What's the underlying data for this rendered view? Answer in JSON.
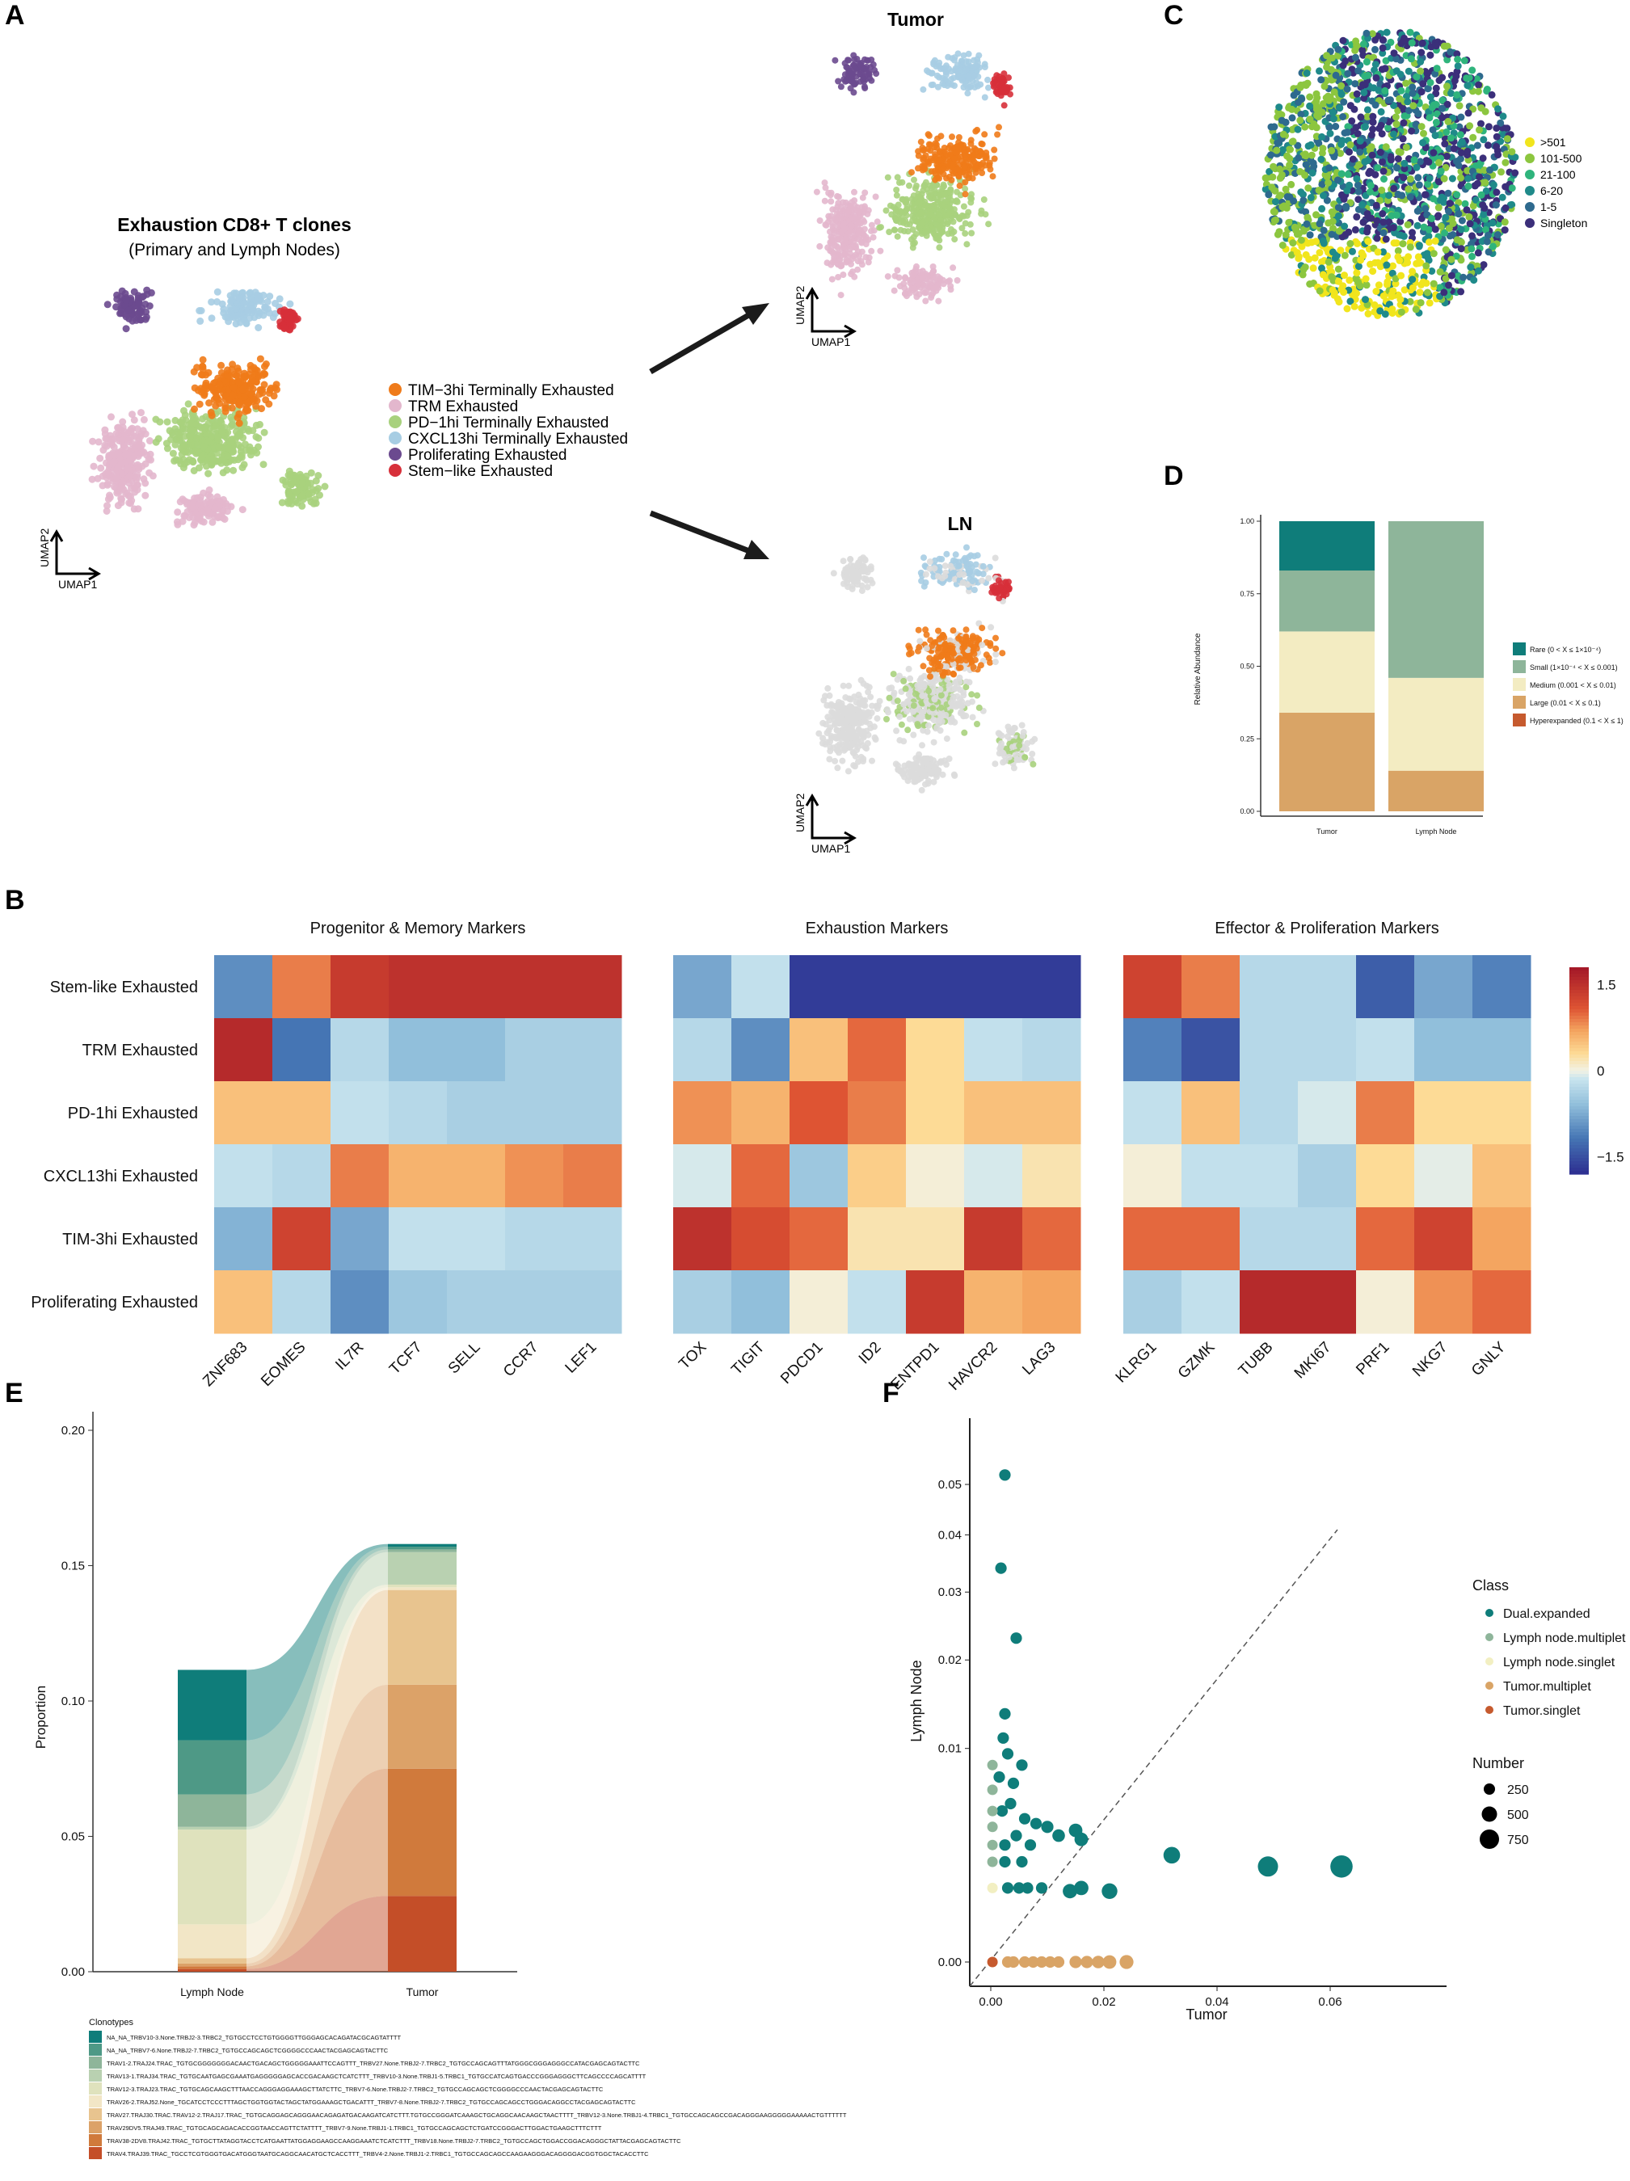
{
  "panel_labels": [
    "A",
    "B",
    "C",
    "D",
    "E",
    "F"
  ],
  "panel_a": {
    "title": "Exhaustion CD8+ T clones",
    "subtitle": "(Primary and Lymph Nodes)",
    "tumor_label": "Tumor",
    "ln_label": "LN",
    "axis_x": "UMAP1",
    "axis_y": "UMAP2",
    "legend": [
      {
        "name": "TIM−3hi Terminally Exhausted",
        "color": "#ef7b1a"
      },
      {
        "name": "TRM Exhausted",
        "color": "#e3b7cd"
      },
      {
        "name": "PD−1hi Terminally Exhausted",
        "color": "#a8d17d"
      },
      {
        "name": "CXCL13hi Terminally Exhausted",
        "color": "#a7cde3"
      },
      {
        "name": "Proliferating Exhausted",
        "color": "#6b4a8f"
      },
      {
        "name": "Stem−like Exhausted",
        "color": "#d7303a"
      }
    ]
  },
  "panel_c": {
    "legend": [
      {
        "name": ">501",
        "color": "#f1e51d"
      },
      {
        "name": "101-500",
        "color": "#8cc63f"
      },
      {
        "name": "21-100",
        "color": "#2fb47c"
      },
      {
        "name": "6-20",
        "color": "#1f8a8a"
      },
      {
        "name": "1-5",
        "color": "#2e6a8e"
      },
      {
        "name": "Singleton",
        "color": "#3b2f7a"
      }
    ]
  },
  "chart_data": [
    {
      "id": "D",
      "type": "bar",
      "stacked": true,
      "categories": [
        "Tumor",
        "Lymph Node"
      ],
      "ylabel": "Relative Abundance",
      "ylim": [
        0,
        1
      ],
      "yticks": [
        "0.00",
        "0.25",
        "0.50",
        "0.75",
        "1.00"
      ],
      "series": [
        {
          "name": "Hyperexpanded (0.1 < X ≤ 1)",
          "color": "#c65a2e",
          "values": [
            0.0,
            0.0
          ]
        },
        {
          "name": "Large (0.01 < X ≤ 0.1)",
          "color": "#d9a466",
          "values": [
            0.34,
            0.14
          ]
        },
        {
          "name": "Medium (0.001 < X ≤ 0.01)",
          "color": "#f3ecc2",
          "values": [
            0.28,
            0.32
          ]
        },
        {
          "name": "Small (1×10⁻⁴ < X ≤ 0.001)",
          "color": "#8eb59a",
          "values": [
            0.21,
            0.54
          ]
        },
        {
          "name": "Rare (0 < X ≤ 1×10⁻⁴)",
          "color": "#0f7d7a",
          "values": [
            0.17,
            0.0
          ]
        }
      ]
    },
    {
      "id": "B",
      "type": "heatmap",
      "rows": [
        "Stem-like Exhausted",
        "TRM Exhausted",
        "PD-1hi Exhausted",
        "CXCL13hi Exhausted",
        "TIM-3hi Exhausted",
        "Proliferating Exhausted"
      ],
      "groups": [
        {
          "title": "Progenitor & Memory Markers",
          "genes": [
            "ZNF683",
            "EOMES",
            "IL7R",
            "TCF7",
            "SELL",
            "CCR7",
            "LEF1"
          ],
          "values": [
            [
              -1.0,
              0.9,
              1.4,
              1.5,
              1.5,
              1.5,
              1.5
            ],
            [
              1.6,
              -1.2,
              -0.3,
              -0.6,
              -0.6,
              -0.4,
              -0.4
            ],
            [
              0.5,
              0.5,
              -0.2,
              -0.3,
              -0.4,
              -0.4,
              -0.4
            ],
            [
              -0.2,
              -0.3,
              0.9,
              0.6,
              0.6,
              0.8,
              0.9
            ],
            [
              -0.7,
              1.3,
              -0.8,
              -0.2,
              -0.2,
              -0.3,
              -0.3
            ],
            [
              0.5,
              -0.3,
              -1.0,
              -0.5,
              -0.4,
              -0.4,
              -0.4
            ]
          ]
        },
        {
          "title": "Exhaustion Markers",
          "genes": [
            "TOX",
            "TIGIT",
            "PDCD1",
            "ID2",
            "ENTPD1",
            "HAVCR2",
            "LAG3"
          ],
          "values": [
            [
              -0.8,
              -0.2,
              -1.7,
              -1.7,
              -1.7,
              -1.7,
              -1.7
            ],
            [
              -0.3,
              -1.0,
              0.5,
              1.0,
              0.3,
              -0.2,
              -0.3
            ],
            [
              0.8,
              0.6,
              1.1,
              0.9,
              0.3,
              0.5,
              0.5
            ],
            [
              -0.1,
              1.0,
              -0.5,
              0.4,
              0.05,
              -0.1,
              0.2
            ],
            [
              1.5,
              1.2,
              1.0,
              0.2,
              0.2,
              1.4,
              1.0
            ],
            [
              -0.4,
              -0.6,
              0.05,
              -0.2,
              1.4,
              0.6,
              0.7
            ]
          ]
        },
        {
          "title": "Effector & Proliferation Markers",
          "genes": [
            "KLRG1",
            "GZMK",
            "TUBB",
            "MKI67",
            "PRF1",
            "NKG7",
            "GNLY"
          ],
          "values": [
            [
              1.3,
              0.9,
              -0.3,
              -0.3,
              -1.4,
              -0.8,
              -1.1
            ],
            [
              -1.1,
              -1.5,
              -0.3,
              -0.3,
              -0.2,
              -0.6,
              -0.6
            ],
            [
              -0.2,
              0.5,
              -0.3,
              -0.1,
              0.9,
              0.3,
              0.3
            ],
            [
              0.05,
              -0.2,
              -0.2,
              -0.4,
              0.3,
              -0.05,
              0.5
            ],
            [
              1.0,
              1.0,
              -0.3,
              -0.3,
              1.0,
              1.3,
              0.7
            ],
            [
              -0.4,
              -0.2,
              1.6,
              1.6,
              0.05,
              0.8,
              1.0
            ]
          ]
        }
      ],
      "colorbar": {
        "ticks": [
          "1.5",
          "0",
          "−1.5"
        ],
        "range": [
          -1.8,
          1.8
        ]
      }
    },
    {
      "id": "E",
      "type": "area",
      "categories": [
        "Lymph Node",
        "Tumor"
      ],
      "ylabel": "Proportion",
      "ylim": [
        0,
        0.2
      ],
      "yticks": [
        "0.00",
        "0.05",
        "0.10",
        "0.15",
        "0.20"
      ],
      "legend_title": "Clonotypes",
      "series": [
        {
          "name": "NA_NA_TRBV10-3.None.TRBJ2-3.TRBC2_TGTGCCTCCTGTGGGGTTGGGAGCACAGATACGCAGTATTTT",
          "color": "#0f7d7a",
          "values": [
            0.026,
            0.001
          ]
        },
        {
          "name": "NA_NA_TRBV7-6.None.TRBJ2-7.TRBC2_TGTGCCAGCAGCTCGGGGCCCAACTACGAGCAGTACTTC",
          "color": "#4e9986",
          "values": [
            0.02,
            0.001
          ]
        },
        {
          "name": "TRAV1-2.TRAJ24.TRAC_TGTGCGGGGGGGACAACTGACAGCTGGGGGAAATTCCAGTTT_TRBV27.None.TRBJ2-7.TRBC2_TGTGCCAGCAGTTTATGGGCGGGAGGGCCATACGAGCAGTACTTC",
          "color": "#8eb59a",
          "values": [
            0.012,
            0.001
          ]
        },
        {
          "name": "TRAV13-1.TRAJ34.TRAC_TGTGCAATGAGCGAAATGAGGGGGAGCACCGACAAGCTCATCTTT_TRBV10-3.None.TRBJ1-5.TRBC1_TGTGCCATCAGTGACCCGGGAGGGCTTCAGCCCCAGCATTTT",
          "color": "#b9d1b1",
          "values": [
            0.001,
            0.012
          ]
        },
        {
          "name": "TRAV12-3.TRAJ23.TRAC_TGTGCAGCAAGCTTTAACCAGGGAGGAAAGCTTATCTTC_TRBV7-6.None.TRBJ2-7.TRBC2_TGTGCCAGCAGCTCGGGGCCCAACTACGAGCAGTACTTC",
          "color": "#dfe2bd",
          "values": [
            0.035,
            0.001
          ]
        },
        {
          "name": "TRAV26-2.TRAJ52.None_TGCATCCTCCCTTTAGCTGGTGGTACTAGCTATGGAAAGCTGACATTT_TRBV7-8.None.TRBJ2-7.TRBC2_TGTGCCAGCAGCCTGGGACAGGCCTACGAGCAGTACTTC",
          "color": "#f2e6c6",
          "values": [
            0.0125,
            0.001
          ]
        },
        {
          "name": "TRAV27.TRAJ30.TRAC.TRAV12-2.TRAJ17.TRAC_TGTGCAGGAGCAGGGAACAGAGATGACAAGATCATCTTT.TGTGCCGGGATCAAAGCTGCAGGCAACAAGCTAACTTTT_TRBV12-3.None.TRBJ1-4.TRBC1_TGTGCCAGCAGCCGACAGGGAAGGGGGAAAAACTGTTTTTT",
          "color": "#e8c48f",
          "values": [
            0.002,
            0.035
          ]
        },
        {
          "name": "TRAV29DV5.TRAJ49.TRAC_TGTGCAGCAGACACCGGTAACCAGTTCTATTTT_TRBV7-9.None.TRBJ1-1.TRBC1_TGTGCCAGCAGCTCTGATCCGGGACTTGGACTGAAGCTTTCTTT",
          "color": "#dca268",
          "values": [
            0.001,
            0.031
          ]
        },
        {
          "name": "TRAV38-2DV8.TRAJ42.TRAC_TGTGCTTATAGGTACCTCATGAATTATGGAGGAAGCCAAGGAAATCTCATCTTT_TRBV18.None.TRBJ2-7.TRBC2_TGTGCCAGCTGGACCGGACAGGGCTATTACGAGCAGTACTTC",
          "color": "#d07a3c",
          "values": [
            0.001,
            0.047
          ]
        },
        {
          "name": "TRAV4.TRAJ39.TRAC_TGCCTCGTGGGTGACATGGGTAATGCAGGCAACATGCTCACCTTT_TRBV4-2.None.TRBJ1-2.TRBC1_TGTGCCAGCAGCCAAGAAGGGACAGGGGACGGTGGCTACACCTTC",
          "color": "#c44e28",
          "values": [
            0.001,
            0.028
          ]
        }
      ]
    },
    {
      "id": "F",
      "type": "scatter",
      "xlabel": "Tumor",
      "ylabel": "Lymph Node",
      "xticks": [
        "0.00",
        "0.02",
        "0.04",
        "0.06"
      ],
      "yticks": [
        "0.00",
        "0.01",
        "0.02",
        "0.03",
        "0.04",
        "0.05"
      ],
      "legend_class_title": "Class",
      "legend_size_title": "Number",
      "classes": [
        {
          "name": "Dual.expanded",
          "color": "#0f7d7a"
        },
        {
          "name": "Lymph node.multiplet",
          "color": "#8eb59a"
        },
        {
          "name": "Lymph node.singlet",
          "color": "#f2efc2"
        },
        {
          "name": "Tumor.multiplet",
          "color": "#d9a466"
        },
        {
          "name": "Tumor.singlet",
          "color": "#c65a2e"
        }
      ],
      "sizes": [
        "250",
        "500",
        "750"
      ],
      "points": [
        {
          "x": 0.0025,
          "y": 0.052,
          "n": 60,
          "c": 0
        },
        {
          "x": 0.0018,
          "y": 0.034,
          "n": 60,
          "c": 0
        },
        {
          "x": 0.0045,
          "y": 0.023,
          "n": 60,
          "c": 0
        },
        {
          "x": 0.0025,
          "y": 0.0135,
          "n": 60,
          "c": 0
        },
        {
          "x": 0.0055,
          "y": 0.0085,
          "n": 60,
          "c": 0
        },
        {
          "x": 0.0022,
          "y": 0.011,
          "n": 60,
          "c": 0
        },
        {
          "x": 0.003,
          "y": 0.0095,
          "n": 60,
          "c": 0
        },
        {
          "x": 0.0015,
          "y": 0.0075,
          "n": 60,
          "c": 0
        },
        {
          "x": 0.004,
          "y": 0.007,
          "n": 60,
          "c": 0
        },
        {
          "x": 0.0035,
          "y": 0.0055,
          "n": 60,
          "c": 0
        },
        {
          "x": 0.002,
          "y": 0.005,
          "n": 60,
          "c": 0
        },
        {
          "x": 0.006,
          "y": 0.0045,
          "n": 60,
          "c": 0
        },
        {
          "x": 0.008,
          "y": 0.0042,
          "n": 60,
          "c": 0
        },
        {
          "x": 0.0045,
          "y": 0.0035,
          "n": 60,
          "c": 0
        },
        {
          "x": 0.0025,
          "y": 0.003,
          "n": 60,
          "c": 0
        },
        {
          "x": 0.007,
          "y": 0.003,
          "n": 60,
          "c": 0
        },
        {
          "x": 0.01,
          "y": 0.004,
          "n": 80,
          "c": 0
        },
        {
          "x": 0.012,
          "y": 0.0035,
          "n": 90,
          "c": 0
        },
        {
          "x": 0.015,
          "y": 0.0038,
          "n": 120,
          "c": 0
        },
        {
          "x": 0.016,
          "y": 0.0033,
          "n": 120,
          "c": 0
        },
        {
          "x": 0.016,
          "y": 0.0012,
          "n": 150,
          "c": 0
        },
        {
          "x": 0.014,
          "y": 0.0011,
          "n": 150,
          "c": 0
        },
        {
          "x": 0.021,
          "y": 0.0011,
          "n": 200,
          "c": 0
        },
        {
          "x": 0.032,
          "y": 0.0025,
          "n": 250,
          "c": 0
        },
        {
          "x": 0.049,
          "y": 0.002,
          "n": 450,
          "c": 0
        },
        {
          "x": 0.062,
          "y": 0.002,
          "n": 600,
          "c": 0
        },
        {
          "x": 0.003,
          "y": 0.0012,
          "n": 60,
          "c": 0
        },
        {
          "x": 0.005,
          "y": 0.0012,
          "n": 60,
          "c": 0
        },
        {
          "x": 0.0065,
          "y": 0.0012,
          "n": 60,
          "c": 0
        },
        {
          "x": 0.009,
          "y": 0.0012,
          "n": 60,
          "c": 0
        },
        {
          "x": 0.0025,
          "y": 0.0022,
          "n": 60,
          "c": 0
        },
        {
          "x": 0.0055,
          "y": 0.0022,
          "n": 60,
          "c": 0
        },
        {
          "x": 0.0003,
          "y": 0.0085,
          "n": 40,
          "c": 1
        },
        {
          "x": 0.0003,
          "y": 0.0065,
          "n": 40,
          "c": 1
        },
        {
          "x": 0.0003,
          "y": 0.005,
          "n": 40,
          "c": 1
        },
        {
          "x": 0.0003,
          "y": 0.004,
          "n": 40,
          "c": 1
        },
        {
          "x": 0.0003,
          "y": 0.003,
          "n": 40,
          "c": 1
        },
        {
          "x": 0.0003,
          "y": 0.0022,
          "n": 40,
          "c": 1
        },
        {
          "x": 0.0003,
          "y": 0.0012,
          "n": 40,
          "c": 2
        },
        {
          "x": 0.003,
          "y": 0.0,
          "n": 60,
          "c": 3
        },
        {
          "x": 0.006,
          "y": 0.0,
          "n": 60,
          "c": 3
        },
        {
          "x": 0.009,
          "y": 0.0,
          "n": 60,
          "c": 3
        },
        {
          "x": 0.012,
          "y": 0.0,
          "n": 60,
          "c": 3
        },
        {
          "x": 0.015,
          "y": 0.0,
          "n": 80,
          "c": 3
        },
        {
          "x": 0.017,
          "y": 0.0,
          "n": 80,
          "c": 3
        },
        {
          "x": 0.019,
          "y": 0.0,
          "n": 90,
          "c": 3
        },
        {
          "x": 0.021,
          "y": 0.0,
          "n": 120,
          "c": 3
        },
        {
          "x": 0.024,
          "y": 0.0,
          "n": 130,
          "c": 3
        },
        {
          "x": 0.004,
          "y": 0.0,
          "n": 60,
          "c": 3
        },
        {
          "x": 0.0075,
          "y": 0.0,
          "n": 60,
          "c": 3
        },
        {
          "x": 0.0105,
          "y": 0.0,
          "n": 60,
          "c": 3
        },
        {
          "x": 0.0003,
          "y": 0.0,
          "n": 40,
          "c": 4
        }
      ]
    }
  ]
}
